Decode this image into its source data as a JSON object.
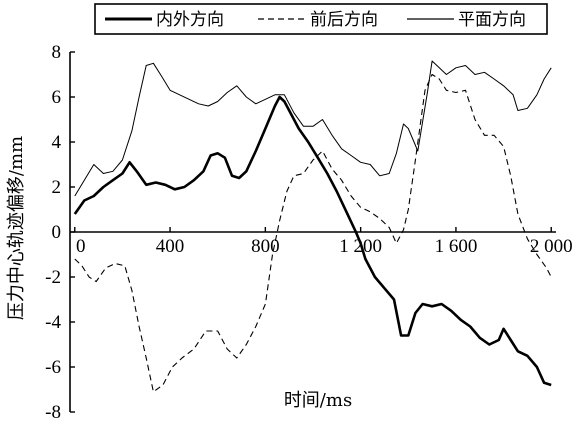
{
  "chart_data": {
    "type": "line",
    "xlabel": "时间/ms",
    "ylabel": "压力中心轨迹偏移/mm",
    "xlim": [
      -20,
      2020
    ],
    "ylim": [
      -8,
      8
    ],
    "xticks": [
      0,
      400,
      800,
      1200,
      1600,
      2000
    ],
    "xtick_labels": [
      "0",
      "400",
      "800",
      "1 200",
      "1 600",
      "2 000"
    ],
    "yticks": [
      -8,
      -6,
      -4,
      -2,
      0,
      2,
      4,
      6,
      8
    ],
    "ytick_labels": [
      "-8",
      "-6",
      "-4",
      "-2",
      "0",
      "2",
      "4",
      "6",
      "8"
    ],
    "legend": {
      "position": "top",
      "entries": [
        "内外方向",
        "前后方向",
        "平面方向"
      ]
    },
    "grid": false,
    "series": [
      {
        "name": "内外方向",
        "style": "thick",
        "x": [
          0,
          40,
          80,
          120,
          160,
          200,
          230,
          260,
          300,
          340,
          380,
          420,
          460,
          500,
          540,
          570,
          600,
          630,
          660,
          690,
          720,
          760,
          800,
          840,
          860,
          880,
          900,
          940,
          980,
          1020,
          1060,
          1100,
          1140,
          1180,
          1200,
          1220,
          1260,
          1300,
          1340,
          1370,
          1400,
          1430,
          1460,
          1500,
          1540,
          1580,
          1620,
          1660,
          1700,
          1740,
          1780,
          1800,
          1830,
          1860,
          1900,
          1940,
          1970,
          2000
        ],
        "y": [
          0.8,
          1.4,
          1.6,
          2.0,
          2.3,
          2.6,
          3.1,
          2.7,
          2.1,
          2.2,
          2.1,
          1.9,
          2.0,
          2.3,
          2.7,
          3.4,
          3.5,
          3.3,
          2.5,
          2.4,
          2.7,
          3.6,
          4.6,
          5.6,
          6.0,
          5.8,
          5.4,
          4.6,
          4.0,
          3.3,
          2.6,
          1.8,
          0.9,
          0.0,
          -0.5,
          -1.2,
          -2.0,
          -2.5,
          -3.0,
          -4.6,
          -4.6,
          -3.6,
          -3.2,
          -3.3,
          -3.2,
          -3.5,
          -3.9,
          -4.2,
          -4.7,
          -5.0,
          -4.8,
          -4.3,
          -4.8,
          -5.3,
          -5.5,
          -6.0,
          -6.7,
          -6.8
        ]
      },
      {
        "name": "前后方向",
        "style": "dashed",
        "x": [
          0,
          30,
          60,
          90,
          130,
          170,
          210,
          240,
          270,
          300,
          330,
          370,
          410,
          450,
          500,
          550,
          600,
          640,
          680,
          720,
          760,
          800,
          830,
          860,
          890,
          920,
          960,
          1000,
          1040,
          1080,
          1120,
          1160,
          1200,
          1240,
          1280,
          1320,
          1350,
          1380,
          1400,
          1430,
          1470,
          1500,
          1530,
          1560,
          1600,
          1640,
          1680,
          1720,
          1760,
          1800,
          1830,
          1860,
          1900,
          1940,
          1980,
          2000
        ],
        "y": [
          -1.2,
          -1.5,
          -2.0,
          -2.2,
          -1.6,
          -1.4,
          -1.5,
          -2.6,
          -4.2,
          -5.6,
          -7.1,
          -6.8,
          -6.0,
          -5.6,
          -5.2,
          -4.4,
          -4.4,
          -5.2,
          -5.6,
          -5.0,
          -4.2,
          -3.2,
          -1.0,
          0.5,
          1.8,
          2.5,
          2.6,
          3.2,
          3.6,
          2.8,
          2.3,
          1.6,
          1.1,
          0.9,
          0.6,
          0.2,
          -0.5,
          0.1,
          1.0,
          3.2,
          6.3,
          7.0,
          6.8,
          6.3,
          6.2,
          6.3,
          5.0,
          4.3,
          4.3,
          3.8,
          2.5,
          0.8,
          -0.3,
          -1.0,
          -1.6,
          -2.0
        ]
      },
      {
        "name": "平面方向",
        "style": "solid",
        "x": [
          0,
          40,
          80,
          120,
          160,
          200,
          240,
          270,
          300,
          330,
          360,
          400,
          440,
          480,
          520,
          560,
          600,
          640,
          680,
          720,
          760,
          800,
          840,
          880,
          920,
          960,
          1000,
          1040,
          1080,
          1120,
          1160,
          1200,
          1240,
          1280,
          1320,
          1350,
          1380,
          1400,
          1440,
          1480,
          1500,
          1520,
          1560,
          1600,
          1640,
          1680,
          1720,
          1760,
          1800,
          1840,
          1860,
          1900,
          1940,
          1970,
          2000
        ],
        "y": [
          1.6,
          2.3,
          3.0,
          2.6,
          2.7,
          3.2,
          4.5,
          6.0,
          7.4,
          7.5,
          7.0,
          6.3,
          6.1,
          5.9,
          5.7,
          5.6,
          5.8,
          6.2,
          6.5,
          6.0,
          5.7,
          5.9,
          6.1,
          6.1,
          5.3,
          4.7,
          4.7,
          5.0,
          4.3,
          3.7,
          3.4,
          3.1,
          3.0,
          2.5,
          2.6,
          3.5,
          4.8,
          4.6,
          3.6,
          6.2,
          7.6,
          7.4,
          7.0,
          7.3,
          7.4,
          7.0,
          7.1,
          6.8,
          6.5,
          6.1,
          5.4,
          5.5,
          6.1,
          6.8,
          7.3
        ]
      }
    ]
  }
}
